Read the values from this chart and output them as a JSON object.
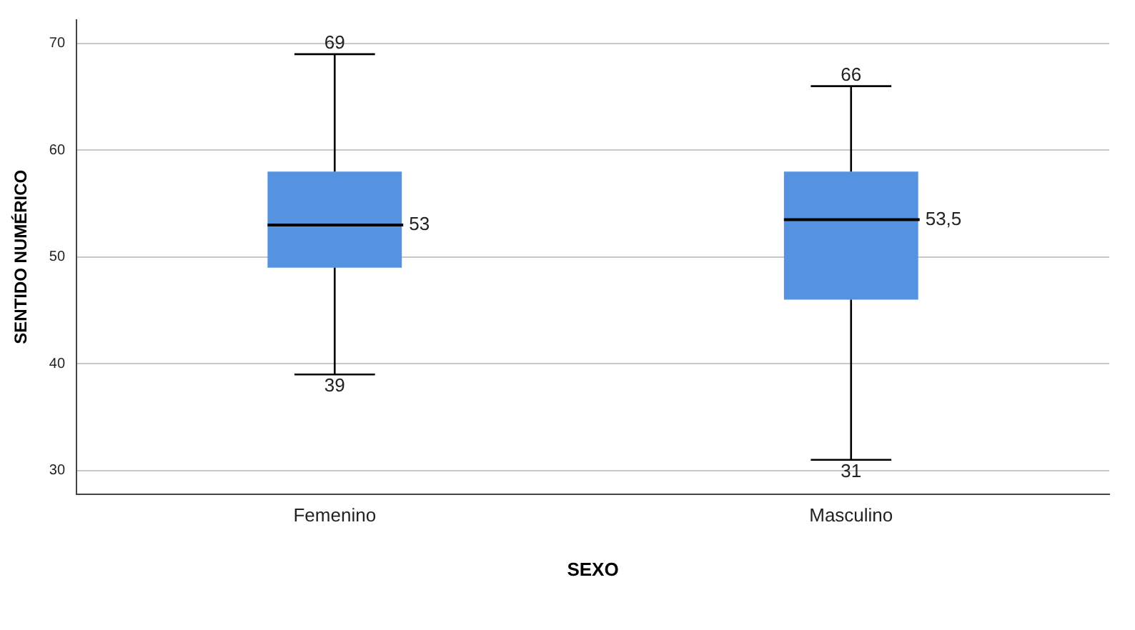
{
  "chart_data": {
    "type": "box",
    "xlabel": "SEXO",
    "ylabel": "SENTIDO NUMÉRICO",
    "categories": [
      "Femenino",
      "Masculino"
    ],
    "color": "#5592e0",
    "boxes": [
      {
        "low": 39,
        "q1": 49,
        "median": 53,
        "q3": 58,
        "high": 69
      },
      {
        "low": 31,
        "q1": 46,
        "median": 53.5,
        "q3": 58,
        "high": 66
      }
    ],
    "ylim": [
      27.8,
      72.2
    ],
    "yticks": [
      30,
      40,
      50,
      60,
      70
    ],
    "grid": "y",
    "annotations": [
      {
        "text": "69",
        "x": "Femenino",
        "y": 69
      },
      "53",
      {
        "text": "39",
        "x": "Femenino",
        "y": 39
      },
      {
        "text": "66",
        "x": "Masculino",
        "y": 66
      },
      "53,5",
      {
        "text": "31",
        "x": "Masculino",
        "y": 31
      }
    ]
  }
}
